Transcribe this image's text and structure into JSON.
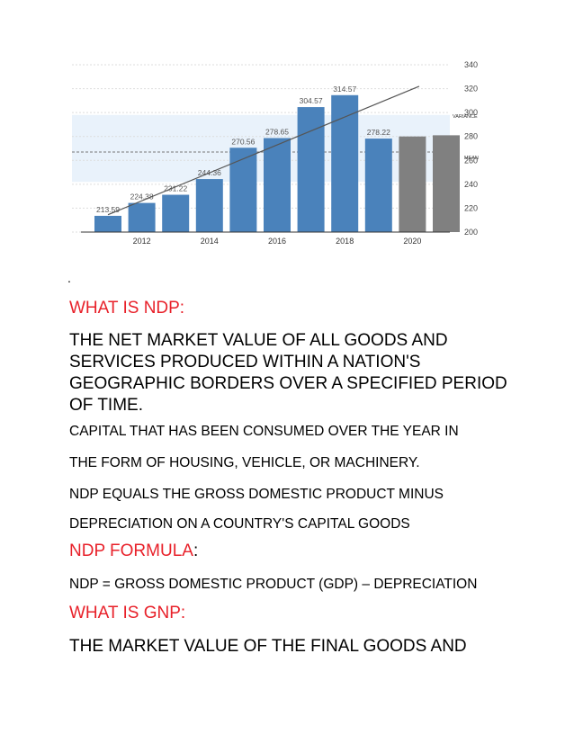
{
  "chart_data": {
    "type": "bar",
    "categories": [
      "2011",
      "2012",
      "2013",
      "2014",
      "2015",
      "2016",
      "2017",
      "2018",
      "2019",
      "2020",
      "2021"
    ],
    "values": [
      213.59,
      224.38,
      231.22,
      244.36,
      270.56,
      278.65,
      304.57,
      314.57,
      278.22,
      280,
      281
    ],
    "value_labels": [
      "213.59",
      "224.38",
      "231.22",
      "244.36",
      "270.56",
      "278.65",
      "304.57",
      "314.57",
      "278.22",
      "",
      ""
    ],
    "forecast_from_index": 9,
    "x_tick_labels": [
      {
        "index": 1,
        "label": "2012"
      },
      {
        "index": 3,
        "label": "2014"
      },
      {
        "index": 5,
        "label": "2016"
      },
      {
        "index": 7,
        "label": "2018"
      },
      {
        "index": 9,
        "label": "2020"
      }
    ],
    "y_ticks": [
      200,
      220,
      240,
      260,
      280,
      300,
      320,
      340
    ],
    "y_tick_labels": [
      "200",
      "220",
      "240",
      "260",
      "280",
      "300",
      "320",
      "340"
    ],
    "ylim": [
      200,
      340
    ],
    "mean": 267,
    "variance_band": [
      242,
      298
    ],
    "trend": {
      "start_value": 214.5,
      "end_value": 322,
      "end_index": 9.2
    },
    "annotations": {
      "variance": "VARIANCE",
      "mean": "MEAN"
    },
    "colors": {
      "bar": "#4a82bb",
      "forecast": "#808080",
      "trend": "#555555",
      "band": "#e9f2fb",
      "grid": "#dddddd"
    },
    "title": "",
    "xlabel": "",
    "ylabel": "",
    "grid": true,
    "legend": "none"
  },
  "doc": {
    "dot": ".",
    "h_ndp": "WHAT IS NDP:",
    "ndp_def": "THE NET MARKET VALUE OF ALL GOODS AND SERVICES PRODUCED WITHIN A NATION'S GEOGRAPHIC BORDERS OVER A SPECIFIED PERIOD OF TIME.",
    "p1": "CAPITAL THAT HAS BEEN CONSUMED OVER THE YEAR IN",
    "p2": "THE FORM OF HOUSING, VEHICLE, OR MACHINERY.",
    "p3": "NDP EQUALS THE GROSS DOMESTIC PRODUCT MINUS",
    "p4": "DEPRECIATION ON A COUNTRY'S CAPITAL GOODS",
    "h_formula": "NDP FORMULA",
    "h_formula_colon": ":",
    "formula": "NDP = GROSS DOMESTIC PRODUCT (GDP) – DEPRECIATION",
    "h_gnp": "WHAT IS GNP:",
    "gnp_def": "THE MARKET VALUE OF THE FINAL GOODS AND"
  }
}
